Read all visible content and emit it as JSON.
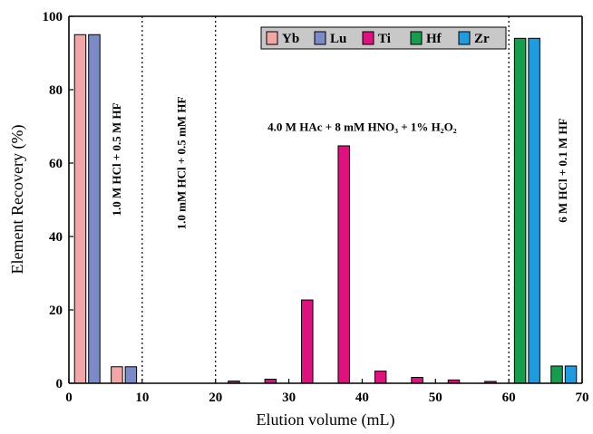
{
  "chart_data": {
    "type": "bar",
    "title": "",
    "xlabel": "Elution volume (mL)",
    "ylabel": "Element Recovery (%)",
    "xlim": [
      0,
      70
    ],
    "ylim": [
      0,
      100
    ],
    "xticks": [
      0,
      10,
      20,
      30,
      40,
      50,
      60,
      70
    ],
    "yticks": [
      0,
      20,
      40,
      60,
      80,
      100
    ],
    "grid": false,
    "legend_position": "top-right",
    "series": [
      {
        "name": "Yb",
        "color": "#f4a6a6",
        "points": [
          {
            "x": 2.5,
            "y": 95
          },
          {
            "x": 7.5,
            "y": 4.5
          }
        ]
      },
      {
        "name": "Lu",
        "color": "#7b8bc8",
        "points": [
          {
            "x": 2.5,
            "y": 95
          },
          {
            "x": 7.5,
            "y": 4.5
          }
        ]
      },
      {
        "name": "Ti",
        "color": "#e0117f",
        "points": [
          {
            "x": 22.5,
            "y": 0.6
          },
          {
            "x": 27.5,
            "y": 1.1
          },
          {
            "x": 32.5,
            "y": 22.7
          },
          {
            "x": 37.5,
            "y": 64.7
          },
          {
            "x": 42.5,
            "y": 3.3
          },
          {
            "x": 47.5,
            "y": 1.6
          },
          {
            "x": 52.5,
            "y": 0.9
          },
          {
            "x": 57.5,
            "y": 0.5
          }
        ]
      },
      {
        "name": "Hf",
        "color": "#169e4e",
        "points": [
          {
            "x": 62.5,
            "y": 94
          },
          {
            "x": 67.5,
            "y": 4.7
          }
        ]
      },
      {
        "name": "Zr",
        "color": "#1d9ce0",
        "points": [
          {
            "x": 62.5,
            "y": 94
          },
          {
            "x": 67.5,
            "y": 4.7
          }
        ]
      }
    ],
    "dividers": [
      10,
      20,
      60
    ],
    "annotations": [
      {
        "id": "hcl-hf",
        "text": "1.0 M HCl + 0.5 M HF",
        "x": 6.7,
        "y": 61,
        "rotate": true
      },
      {
        "id": "mm-hcl-hf",
        "text": "1.0 mM HCl + 0.5 mM HF",
        "x": 15.5,
        "y": 60,
        "rotate": true
      },
      {
        "id": "hac",
        "text": "4.0 M HAc + 8 mM HNO₃ + 1% H₂O₂",
        "x": 40,
        "y": 69.5,
        "rotate": false
      },
      {
        "id": "hcl-hf-6m",
        "text": "6 M HCl + 0.1 M HF",
        "x": 67.5,
        "y": 58,
        "rotate": true
      }
    ]
  }
}
